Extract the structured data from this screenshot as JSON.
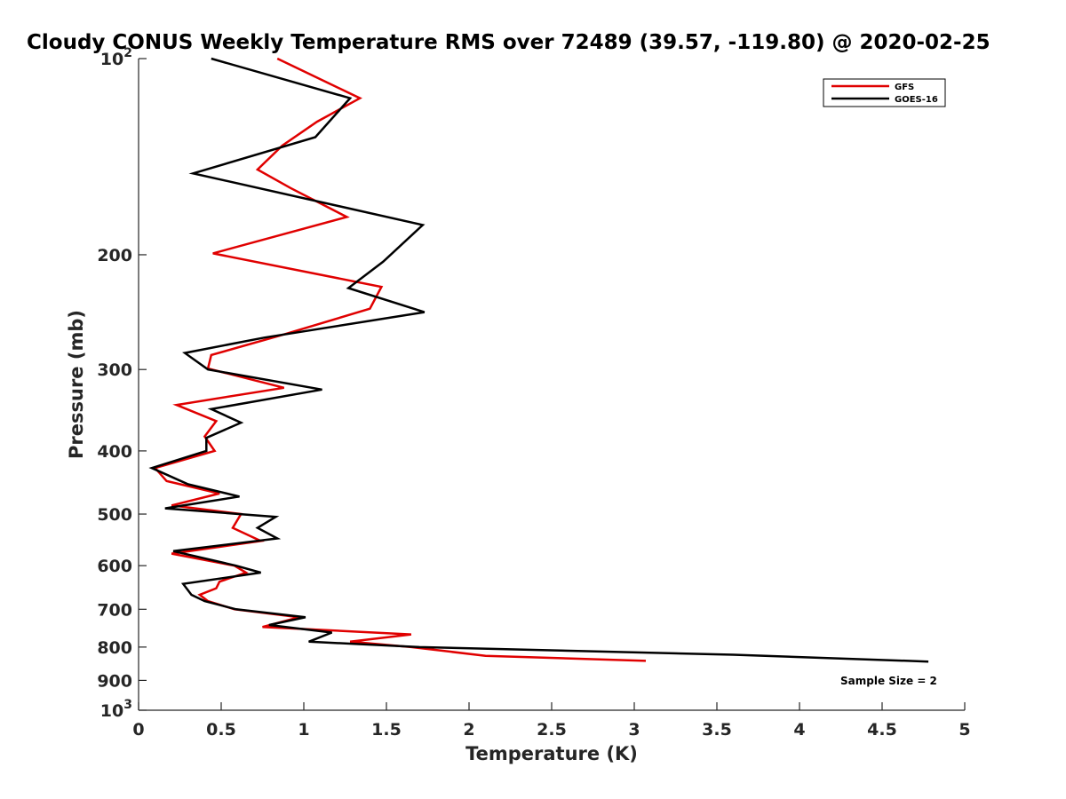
{
  "chart_data": {
    "type": "line",
    "title": "Cloudy CONUS Weekly Temperature RMS over 72489 (39.57, -119.80) @ 2020-02-25",
    "xlabel": "Temperature (K)",
    "ylabel": "Pressure (mb)",
    "xlim": [
      0,
      5
    ],
    "ylim": [
      100,
      1000
    ],
    "y_scale": "log",
    "y_reversed": true,
    "x_ticks": [
      "0",
      "0.5",
      "1",
      "1.5",
      "2",
      "2.5",
      "3",
      "3.5",
      "4",
      "4.5",
      "5"
    ],
    "y_ticks": [
      {
        "value": 100,
        "base": "10",
        "exp": "2"
      },
      {
        "value": 200,
        "label": "200"
      },
      {
        "value": 300,
        "label": "300"
      },
      {
        "value": 400,
        "label": "400"
      },
      {
        "value": 500,
        "label": "500"
      },
      {
        "value": 600,
        "label": "600"
      },
      {
        "value": 700,
        "label": "700"
      },
      {
        "value": 800,
        "label": "800"
      },
      {
        "value": 900,
        "label": "900"
      },
      {
        "value": 1000,
        "base": "10",
        "exp": "3"
      }
    ],
    "grid": false,
    "legend_position": "top-right",
    "annotation": "Sample Size = 2",
    "series": [
      {
        "name": "GFS",
        "color": "#e00000",
        "points": [
          [
            0.84,
            100
          ],
          [
            1.34,
            115
          ],
          [
            1.08,
            125
          ],
          [
            0.87,
            136
          ],
          [
            0.72,
            148
          ],
          [
            0.92,
            158
          ],
          [
            1.26,
            175
          ],
          [
            0.45,
            199
          ],
          [
            1.47,
            224
          ],
          [
            1.4,
            242
          ],
          [
            0.88,
            265
          ],
          [
            0.44,
            285
          ],
          [
            0.42,
            299
          ],
          [
            0.88,
            320
          ],
          [
            0.23,
            340
          ],
          [
            0.47,
            360
          ],
          [
            0.4,
            380
          ],
          [
            0.46,
            400
          ],
          [
            0.1,
            425
          ],
          [
            0.17,
            445
          ],
          [
            0.49,
            465
          ],
          [
            0.2,
            485
          ],
          [
            0.62,
            500
          ],
          [
            0.57,
            525
          ],
          [
            0.74,
            550
          ],
          [
            0.2,
            575
          ],
          [
            0.58,
            600
          ],
          [
            0.65,
            615
          ],
          [
            0.49,
            635
          ],
          [
            0.47,
            650
          ],
          [
            0.37,
            665
          ],
          [
            0.42,
            680
          ],
          [
            0.58,
            700
          ],
          [
            0.97,
            720
          ],
          [
            0.75,
            745
          ],
          [
            1.65,
            765
          ],
          [
            1.28,
            785
          ],
          [
            1.65,
            800
          ],
          [
            2.1,
            825
          ],
          [
            3.07,
            840
          ]
        ]
      },
      {
        "name": "GOES-16",
        "color": "#000000",
        "points": [
          [
            0.44,
            100
          ],
          [
            1.28,
            115
          ],
          [
            1.07,
            132
          ],
          [
            0.33,
            150
          ],
          [
            1.72,
            180
          ],
          [
            1.48,
            205
          ],
          [
            1.27,
            225
          ],
          [
            1.73,
            245
          ],
          [
            0.76,
            268
          ],
          [
            0.28,
            283
          ],
          [
            0.42,
            300
          ],
          [
            1.11,
            322
          ],
          [
            0.44,
            345
          ],
          [
            0.62,
            362
          ],
          [
            0.41,
            382
          ],
          [
            0.41,
            400
          ],
          [
            0.08,
            425
          ],
          [
            0.3,
            450
          ],
          [
            0.61,
            470
          ],
          [
            0.16,
            490
          ],
          [
            0.83,
            505
          ],
          [
            0.72,
            525
          ],
          [
            0.84,
            545
          ],
          [
            0.21,
            570
          ],
          [
            0.59,
            600
          ],
          [
            0.74,
            615
          ],
          [
            0.27,
            640
          ],
          [
            0.32,
            665
          ],
          [
            0.4,
            680
          ],
          [
            0.59,
            700
          ],
          [
            1.01,
            720
          ],
          [
            0.79,
            740
          ],
          [
            1.17,
            760
          ],
          [
            1.03,
            785
          ],
          [
            1.7,
            800
          ],
          [
            3.6,
            822
          ],
          [
            4.78,
            842
          ]
        ]
      }
    ]
  }
}
